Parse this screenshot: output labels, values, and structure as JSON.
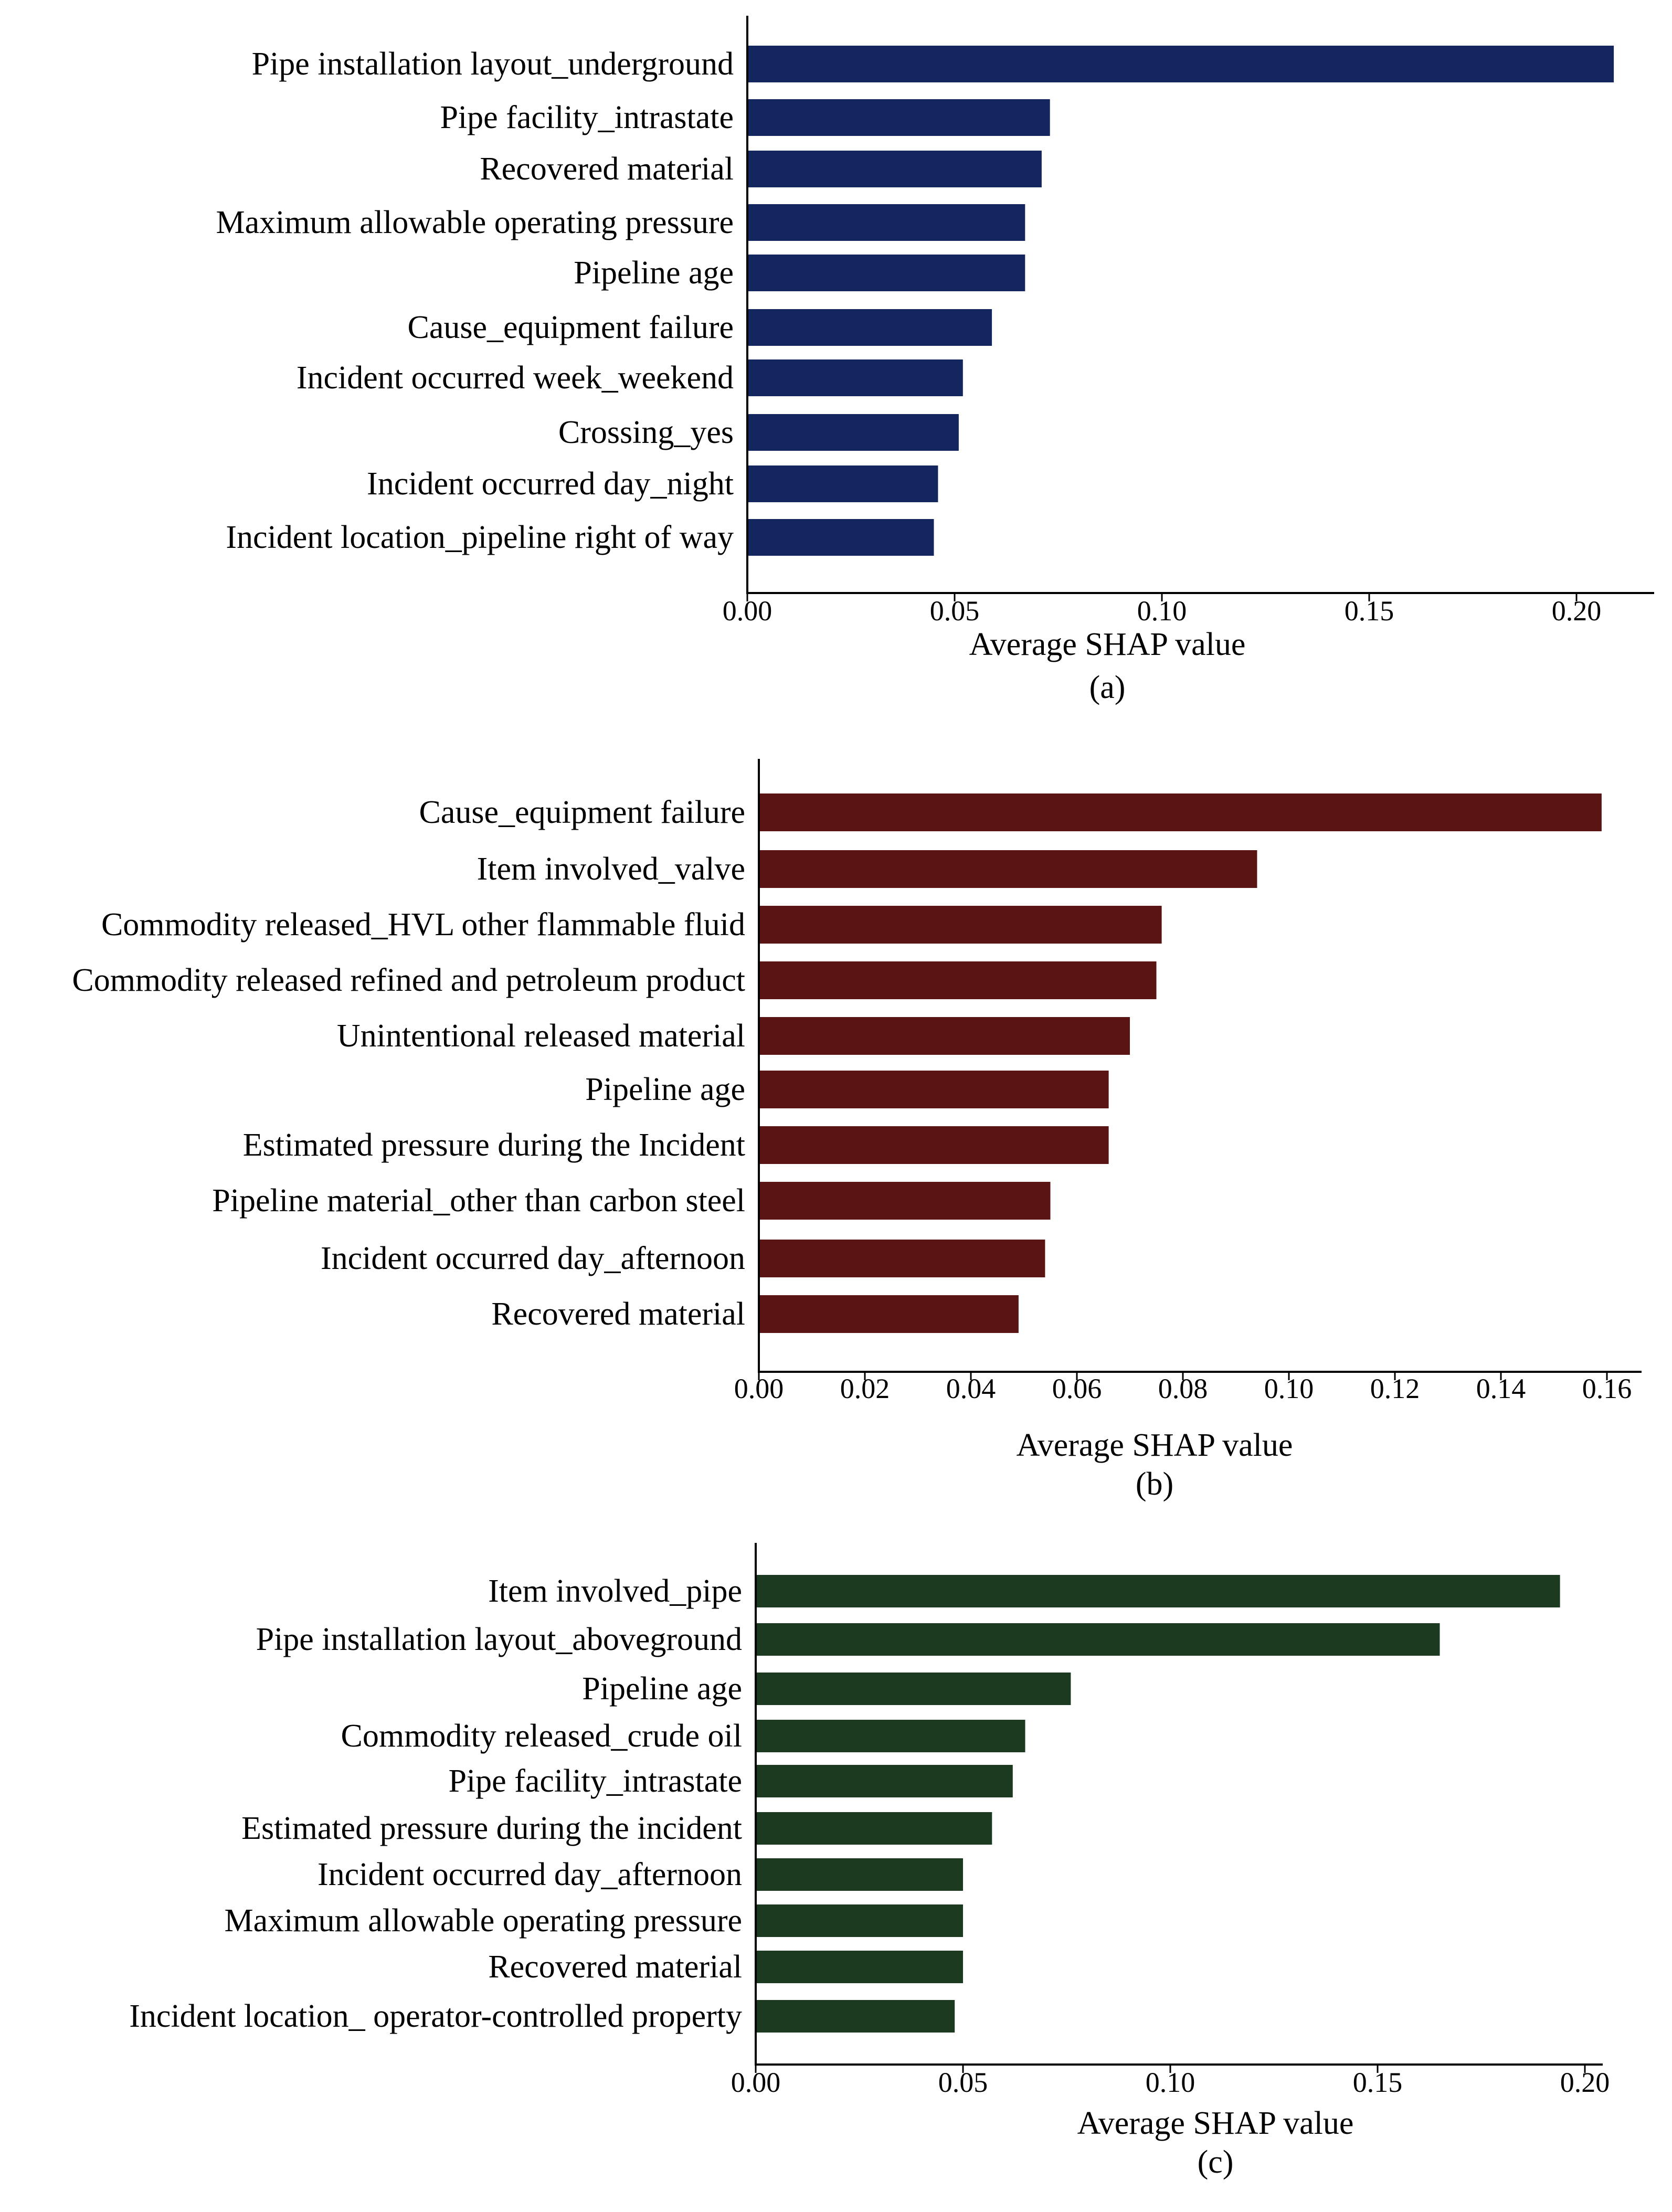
{
  "figure": {
    "description_title": "Average SHAP value feature importance panels"
  },
  "chart_data": [
    {
      "type": "bar",
      "orientation": "horizontal",
      "panel_label": "(a)",
      "xlabel": "Average SHAP value",
      "xlim": [
        0,
        0.22
      ],
      "ticks": [
        0,
        0.05,
        0.1,
        0.15,
        0.2
      ],
      "tick_labels": [
        "0.00",
        "0.05",
        "0.10",
        "0.15",
        "0.20"
      ],
      "color": "#13275e",
      "categories": [
        "Pipe installation layout_underground",
        "Pipe facility_intrastate",
        "Recovered material",
        "Maximum allowable operating pressure",
        "Pipeline age",
        "Cause_equipment failure",
        "Incident occurred week_weekend",
        "Crossing_yes",
        "Incident occurred day_night",
        "Incident location_pipeline right of way"
      ],
      "values": [
        0.209,
        0.073,
        0.071,
        0.067,
        0.067,
        0.059,
        0.052,
        0.051,
        0.046,
        0.045
      ]
    },
    {
      "type": "bar",
      "orientation": "horizontal",
      "panel_label": "(b)",
      "xlabel": "Average SHAP value",
      "xlim": [
        0,
        0.167
      ],
      "ticks": [
        0,
        0.02,
        0.04,
        0.06,
        0.08,
        0.1,
        0.12,
        0.14,
        0.16
      ],
      "tick_labels": [
        "0.00",
        "0.02",
        "0.04",
        "0.06",
        "0.08",
        "0.10",
        "0.12",
        "0.14",
        "0.16"
      ],
      "color": "#5a1414",
      "categories": [
        "Cause_equipment failure",
        "Item involved_valve",
        "Commodity released_HVL other flammable fluid",
        "Commodity released refined and petroleum product",
        "Unintentional released material",
        "Pipeline age",
        "Estimated pressure during the Incident",
        "Pipeline material_other than carbon steel",
        "Incident occurred day_afternoon",
        "Recovered material"
      ],
      "values": [
        0.159,
        0.094,
        0.076,
        0.075,
        0.07,
        0.066,
        0.066,
        0.055,
        0.054,
        0.049
      ]
    },
    {
      "type": "bar",
      "orientation": "horizontal",
      "panel_label": "(c)",
      "xlabel": "Average SHAP value",
      "xlim": [
        0,
        0.205
      ],
      "ticks": [
        0,
        0.05,
        0.1,
        0.15,
        0.2
      ],
      "tick_labels": [
        "0.00",
        "0.05",
        "0.10",
        "0.15",
        "0.20"
      ],
      "color": "#1b3a1f",
      "categories": [
        "Item involved_pipe",
        "Pipe installation layout_aboveground",
        "Pipeline age",
        "Commodity released_crude oil",
        "Pipe facility_intrastate",
        "Estimated pressure during the incident",
        "Incident occurred day_afternoon",
        "Maximum allowable operating pressure",
        "Recovered material",
        "Incident location_ operator-controlled property"
      ],
      "values": [
        0.194,
        0.165,
        0.076,
        0.065,
        0.062,
        0.057,
        0.05,
        0.05,
        0.05,
        0.048
      ]
    }
  ]
}
